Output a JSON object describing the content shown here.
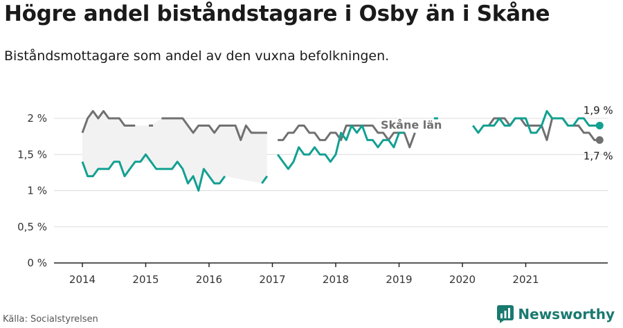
{
  "title": "Högre andel biståndstagare i Osby än i Skåne",
  "subtitle": "Biståndsmottagare som andel av den vuxna befolkningen.",
  "source": "Källa: Socialstyrelsen",
  "brand": "Newsworthy",
  "colors": {
    "osby": "#12a091",
    "skane": "#707070",
    "gap_fill": "#f2f2f2",
    "grid": "#dcdcdc",
    "axis": "#222222"
  },
  "chart_data": {
    "type": "line",
    "ylim": [
      0,
      2.2
    ],
    "y_ticks": [
      0,
      0.5,
      1,
      1.5,
      2
    ],
    "y_tick_labels": [
      "0 %",
      "0,5 %",
      "1 %",
      "1,5 %",
      "2 %"
    ],
    "x_ticks": [
      "2014",
      "2015",
      "2016",
      "2017",
      "2018",
      "2019",
      "2020",
      "2021"
    ],
    "start": {
      "year": 2014,
      "month": 1
    },
    "series": [
      {
        "name": "Skåne län",
        "key": "skane",
        "end_label": "1,7 %",
        "values": [
          1.8,
          2.0,
          2.1,
          2.0,
          2.1,
          2.0,
          2.0,
          2.0,
          1.9,
          1.9,
          1.9,
          null,
          null,
          1.9,
          null,
          2.0,
          2.0,
          2.0,
          2.0,
          2.0,
          1.9,
          1.8,
          1.9,
          1.9,
          1.9,
          1.8,
          1.9,
          1.9,
          1.9,
          1.9,
          1.7,
          1.9,
          1.8,
          1.8,
          1.8,
          1.8,
          null,
          1.7,
          1.7,
          1.8,
          1.8,
          1.9,
          1.9,
          1.8,
          1.8,
          1.7,
          1.7,
          1.8,
          1.8,
          1.7,
          1.9,
          1.9,
          1.9,
          1.9,
          1.9,
          1.9,
          1.8,
          1.8,
          1.7,
          1.8,
          1.8,
          1.8,
          1.6,
          1.8,
          null,
          null,
          null,
          null,
          null,
          null,
          null,
          null,
          null,
          null,
          null,
          null,
          1.9,
          1.9,
          2.0,
          2.0,
          2.0,
          1.9,
          2.0,
          2.0,
          1.9,
          1.9,
          1.9,
          1.9,
          1.7,
          2.0,
          2.0,
          2.0,
          1.9,
          1.9,
          1.9,
          1.8,
          1.8,
          1.7,
          1.7
        ]
      },
      {
        "name": "Osby",
        "key": "osby",
        "end_label": "1,9 %",
        "values": [
          1.4,
          1.2,
          1.2,
          1.3,
          1.3,
          1.3,
          1.4,
          1.4,
          1.2,
          1.3,
          1.4,
          1.4,
          1.5,
          1.4,
          1.3,
          1.3,
          1.3,
          1.3,
          1.4,
          1.3,
          1.1,
          1.2,
          1.0,
          1.3,
          1.2,
          1.1,
          1.1,
          1.2,
          null,
          null,
          null,
          null,
          null,
          null,
          1.1,
          1.2,
          null,
          1.5,
          1.4,
          1.3,
          1.4,
          1.6,
          1.5,
          1.5,
          1.6,
          1.5,
          1.5,
          1.4,
          1.5,
          1.8,
          1.7,
          1.9,
          1.8,
          1.9,
          1.7,
          1.7,
          1.6,
          1.7,
          1.7,
          1.6,
          1.8,
          1.8,
          null,
          null,
          null,
          null,
          null,
          2.0,
          null,
          null,
          null,
          null,
          null,
          null,
          1.9,
          1.8,
          1.9,
          1.9,
          1.9,
          2.0,
          1.9,
          1.9,
          2.0,
          2.0,
          2.0,
          1.8,
          1.8,
          1.9,
          2.1,
          2.0,
          2.0,
          2.0,
          1.9,
          1.9,
          2.0,
          2.0,
          1.9,
          1.9,
          1.9
        ]
      }
    ],
    "annotations": [
      {
        "text": "Skåne län",
        "series": "skane"
      }
    ]
  }
}
